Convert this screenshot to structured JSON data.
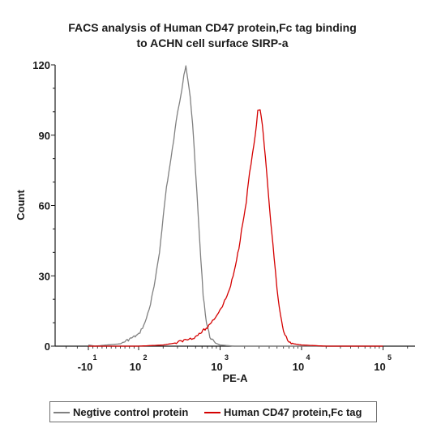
{
  "chart_data": {
    "type": "line",
    "title_lines": [
      "FACS analysis of Human CD47 protein,Fc tag binding",
      "to ACHN cell surface SIRP-a"
    ],
    "xlabel": "PE-A",
    "ylabel": "Count",
    "x_scale": "biexponential",
    "xlim": [
      -40,
      300000
    ],
    "ylim": [
      0,
      120
    ],
    "y_ticks": [
      0,
      30,
      60,
      90,
      120
    ],
    "x_tick_labels": [
      {
        "base": "-10",
        "exp": "1",
        "value": -10
      },
      {
        "base": "10",
        "exp": "2",
        "value": 100
      },
      {
        "base": "10",
        "exp": "3",
        "value": 1000
      },
      {
        "base": "10",
        "exp": "4",
        "value": 10000
      },
      {
        "base": "10",
        "exp": "5",
        "value": 100000
      }
    ],
    "grid": false,
    "legend_position": "bottom",
    "series": [
      {
        "name": "Negtive control protein",
        "color": "#808080",
        "x": [
          -10,
          5,
          30,
          60,
          80,
          100,
          120,
          140,
          160,
          180,
          200,
          220,
          250,
          280,
          300,
          320,
          340,
          360,
          380,
          400,
          430,
          460,
          500,
          540,
          580,
          620,
          680,
          750,
          850,
          1000,
          1500,
          3000,
          10000,
          100000
        ],
        "y": [
          0.5,
          0,
          0.5,
          1,
          3,
          5,
          10,
          18,
          28,
          40,
          55,
          68,
          80,
          92,
          100,
          105,
          110,
          116,
          119,
          114,
          106,
          95,
          75,
          55,
          37,
          22,
          10,
          4,
          1.5,
          0.5,
          0,
          0,
          0,
          0
        ]
      },
      {
        "name": "Human CD47 protein,Fc tag",
        "color": "#d40000",
        "x": [
          -10,
          100,
          200,
          300,
          400,
          500,
          700,
          900,
          1100,
          1300,
          1500,
          1700,
          1900,
          2100,
          2300,
          2500,
          2700,
          2900,
          3100,
          3300,
          3600,
          3900,
          4200,
          4600,
          5000,
          5500,
          6000,
          7000,
          8000,
          10000,
          20000,
          100000
        ],
        "y": [
          0,
          0,
          0.5,
          1.5,
          3,
          4,
          8,
          13,
          18,
          24,
          32,
          42,
          53,
          62,
          74,
          82,
          90,
          100,
          101,
          94,
          80,
          66,
          52,
          38,
          24,
          13,
          6,
          2,
          1,
          0.5,
          0,
          0
        ]
      }
    ]
  }
}
